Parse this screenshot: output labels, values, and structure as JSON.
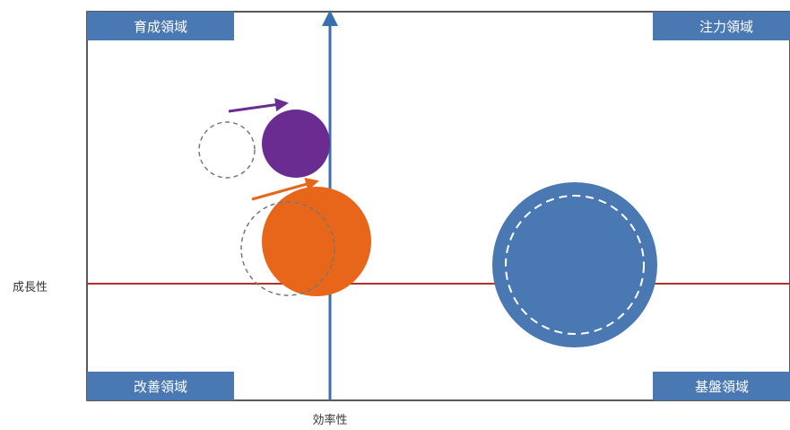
{
  "quadrants": {
    "top_left": "育成領域",
    "top_right": "注力領域",
    "bottom_left": "改善領域",
    "bottom_right": "基盤領域"
  },
  "axes": {
    "vertical_label": "成長性",
    "horizontal_label": "効率性"
  },
  "colors": {
    "label_background": "#4a78b2",
    "label_text": "#ffffff",
    "vertical_axis": "#3a6fb0",
    "horizontal_axis": "#b5302a",
    "purple_bubble": "#6a2c91",
    "orange_bubble": "#e8661a",
    "blue_bubble": "#4a78b2",
    "frame": "#222222",
    "dashed_circle": "#777777"
  },
  "bubbles": [
    {
      "name": "purple",
      "color": "purple_bubble",
      "moved": true
    },
    {
      "name": "orange",
      "color": "orange_bubble",
      "moved": true
    },
    {
      "name": "blue",
      "color": "blue_bubble",
      "moved": false
    }
  ]
}
